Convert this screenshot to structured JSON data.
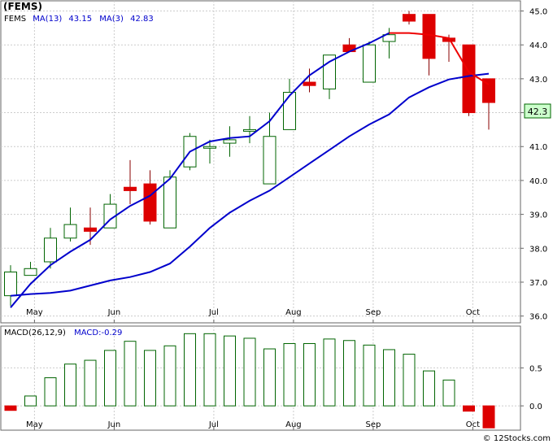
{
  "header": {
    "title": "(FEMS)"
  },
  "colors": {
    "up": "#006400",
    "down": "#dd0000",
    "ma13": "#0000cc",
    "ma3": "#ee0000",
    "grid": "#cccccc",
    "badge": "#ccffcc"
  },
  "chart_data": [
    {
      "type": "candlestick",
      "ticker": "FEMS",
      "legend": {
        "ticker": "FEMS",
        "ma13_label": "MA(13)",
        "ma13_value": "43.15",
        "ma3_label": "MA(3)",
        "ma3_value": "42.83"
      },
      "last_price": "42.3",
      "ylim": [
        35.8,
        45.3
      ],
      "y_ticks": [
        "36.0",
        "37.0",
        "38.0",
        "39.0",
        "40.0",
        "41.0",
        "42.0",
        "43.0",
        "44.0",
        "45.0"
      ],
      "month_labels": [
        {
          "label": "May",
          "at": 1.2
        },
        {
          "label": "Jun",
          "at": 5.2
        },
        {
          "label": "Jul",
          "at": 10.2
        },
        {
          "label": "Aug",
          "at": 14.2
        },
        {
          "label": "Sep",
          "at": 18.2
        },
        {
          "label": "Oct",
          "at": 23.2
        }
      ],
      "candles": [
        {
          "o": 36.6,
          "h": 37.5,
          "l": 36.3,
          "c": 37.3
        },
        {
          "o": 37.2,
          "h": 37.6,
          "l": 37.2,
          "c": 37.4
        },
        {
          "o": 37.6,
          "h": 38.6,
          "l": 37.4,
          "c": 38.3
        },
        {
          "o": 38.3,
          "h": 39.2,
          "l": 38.2,
          "c": 38.7
        },
        {
          "o": 38.6,
          "h": 39.2,
          "l": 38.1,
          "c": 38.5
        },
        {
          "o": 38.6,
          "h": 39.6,
          "l": 38.6,
          "c": 39.3
        },
        {
          "o": 39.8,
          "h": 40.6,
          "l": 39.3,
          "c": 39.7
        },
        {
          "o": 39.9,
          "h": 40.3,
          "l": 38.7,
          "c": 38.8
        },
        {
          "o": 38.6,
          "h": 40.3,
          "l": 38.6,
          "c": 40.1
        },
        {
          "o": 40.4,
          "h": 41.4,
          "l": 40.3,
          "c": 41.3
        },
        {
          "o": 41.0,
          "h": 41.2,
          "l": 40.5,
          "c": 41.0
        },
        {
          "o": 41.1,
          "h": 41.6,
          "l": 40.7,
          "c": 41.2
        },
        {
          "o": 41.5,
          "h": 41.9,
          "l": 41.1,
          "c": 41.5
        },
        {
          "o": 39.9,
          "h": 42.0,
          "l": 39.9,
          "c": 41.3
        },
        {
          "o": 41.5,
          "h": 43.0,
          "l": 41.5,
          "c": 42.6
        },
        {
          "o": 42.9,
          "h": 43.3,
          "l": 42.6,
          "c": 42.8
        },
        {
          "o": 42.7,
          "h": 43.7,
          "l": 42.4,
          "c": 43.7
        },
        {
          "o": 44.0,
          "h": 44.2,
          "l": 43.8,
          "c": 43.8
        },
        {
          "o": 42.9,
          "h": 44.1,
          "l": 42.9,
          "c": 44.0
        },
        {
          "o": 44.1,
          "h": 44.5,
          "l": 43.6,
          "c": 44.3
        },
        {
          "o": 44.9,
          "h": 45.0,
          "l": 44.6,
          "c": 44.7
        },
        {
          "o": 44.9,
          "h": 44.9,
          "l": 43.1,
          "c": 43.6
        },
        {
          "o": 44.2,
          "h": 44.3,
          "l": 43.5,
          "c": 44.1
        },
        {
          "o": 44.0,
          "h": 44.0,
          "l": 41.9,
          "c": 42.0
        },
        {
          "o": 43.0,
          "h": 43.0,
          "l": 41.5,
          "c": 42.3
        }
      ],
      "ma13": [
        36.6,
        36.65,
        36.68,
        36.75,
        36.9,
        37.05,
        37.15,
        37.3,
        37.55,
        38.05,
        38.6,
        39.05,
        39.4,
        39.7,
        40.1,
        40.5,
        40.9,
        41.3,
        41.65,
        41.95,
        42.45,
        42.75,
        42.98,
        43.08,
        43.15
      ],
      "ma3": [
        36.25,
        36.95,
        37.5,
        37.9,
        38.25,
        38.85,
        39.25,
        39.55,
        40.05,
        40.85,
        41.15,
        41.25,
        41.3,
        41.75,
        42.5,
        43.1,
        43.5,
        43.8,
        44.05,
        44.35,
        null,
        null,
        null,
        null,
        null
      ],
      "ma3_red": [
        null,
        null,
        null,
        null,
        null,
        null,
        null,
        null,
        null,
        null,
        null,
        null,
        null,
        null,
        null,
        null,
        null,
        null,
        null,
        44.35,
        44.35,
        44.3,
        44.2,
        43.2,
        42.83
      ]
    },
    {
      "type": "bar",
      "title": "MACD(26,12,9)",
      "value_label": "MACD:-0.29",
      "ylim": [
        -0.32,
        1.05
      ],
      "y_ticks": [
        "0.5",
        "0.0"
      ],
      "values": [
        -0.06,
        0.13,
        0.37,
        0.55,
        0.6,
        0.73,
        0.85,
        0.73,
        0.79,
        0.95,
        0.95,
        0.92,
        0.89,
        0.75,
        0.82,
        0.82,
        0.88,
        0.86,
        0.8,
        0.74,
        0.68,
        0.46,
        0.34,
        -0.07,
        -0.29
      ]
    }
  ],
  "watermark": "© 12Stocks.com"
}
